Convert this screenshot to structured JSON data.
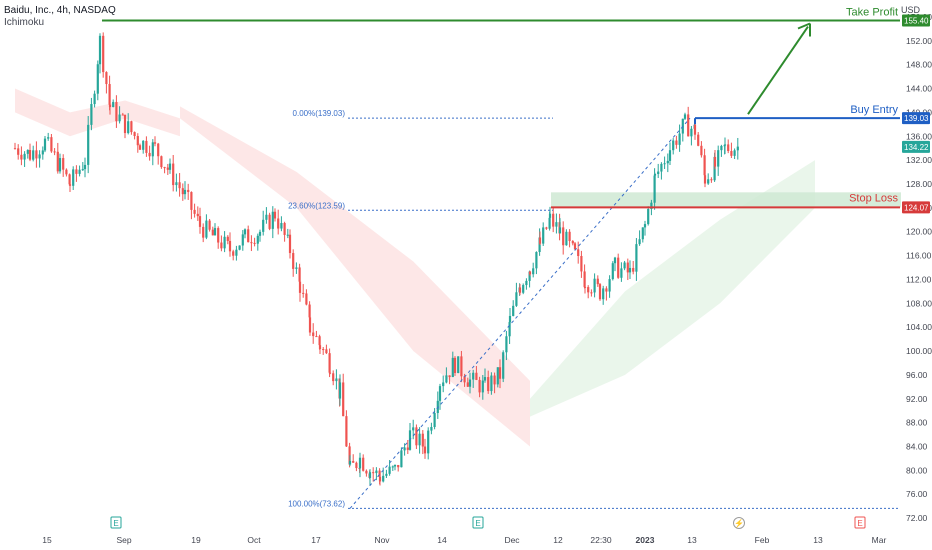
{
  "header": {
    "title": "Baidu, Inc., 4h, NASDAQ",
    "indicator": "Ichimoku",
    "currency": "USD"
  },
  "price_axis": {
    "min": 70,
    "max": 158,
    "ticks": [
      156,
      152,
      148,
      144,
      140,
      136,
      132,
      128,
      124,
      120,
      116,
      112,
      108,
      104,
      100,
      96,
      92,
      88,
      84,
      80,
      76,
      72
    ],
    "tick_format": "2dp"
  },
  "time_axis": {
    "labels": [
      "15",
      "Sep",
      "19",
      "Oct",
      "17",
      "Nov",
      "14",
      "Dec",
      "12",
      "22:30",
      "2023",
      "13",
      "Feb",
      "13",
      "Mar"
    ]
  },
  "levels": {
    "take_profit": {
      "label": "Take Profit",
      "price": 155.4,
      "price_label": "155.40",
      "color": "#2e8b2e"
    },
    "buy_entry": {
      "label": "Buy Entry",
      "price": 139.03,
      "price_label": "139.03",
      "color": "#1f5fc4"
    },
    "stop_loss": {
      "label": "Stop Loss",
      "price": 124.07,
      "price_label": "124.07",
      "color": "#d63a3a"
    },
    "last_price": {
      "price": 134.22,
      "price_label": "134.22",
      "color": "#26a69a"
    }
  },
  "fibonacci": [
    {
      "label": "0.00%(139.03)",
      "price": 139.03
    },
    {
      "label": "23.60%(123.59)",
      "price": 123.59
    },
    {
      "label": "100.00%(73.62)",
      "price": 73.62
    }
  ],
  "event_markers": [
    "E",
    "E",
    "⚡",
    "E"
  ],
  "colors": {
    "up": "#26a69a",
    "down": "#ef5350",
    "cloud_bull": "#e8f5e9",
    "cloud_bear": "#fde4e4"
  },
  "chart_data": {
    "type": "candlestick",
    "title": "Baidu, Inc., 4h, NASDAQ",
    "indicator": "Ichimoku",
    "ylim": [
      70,
      158
    ],
    "close_path": [
      [
        15,
        134
      ],
      [
        30,
        133
      ],
      [
        45,
        135
      ],
      [
        60,
        131
      ],
      [
        70,
        128
      ],
      [
        85,
        132
      ],
      [
        100,
        152
      ],
      [
        110,
        141
      ],
      [
        125,
        138
      ],
      [
        140,
        135
      ],
      [
        155,
        134
      ],
      [
        170,
        130
      ],
      [
        185,
        126
      ],
      [
        200,
        121
      ],
      [
        215,
        119
      ],
      [
        230,
        117
      ],
      [
        245,
        119
      ],
      [
        260,
        120
      ],
      [
        275,
        123
      ],
      [
        290,
        117
      ],
      [
        300,
        111
      ],
      [
        310,
        104
      ],
      [
        320,
        101
      ],
      [
        330,
        98
      ],
      [
        340,
        93
      ],
      [
        350,
        80
      ],
      [
        360,
        82
      ],
      [
        370,
        80
      ],
      [
        380,
        79
      ],
      [
        395,
        80
      ],
      [
        410,
        86
      ],
      [
        425,
        84
      ],
      [
        440,
        95
      ],
      [
        455,
        98
      ],
      [
        470,
        95
      ],
      [
        485,
        94
      ],
      [
        500,
        96
      ],
      [
        510,
        105
      ],
      [
        520,
        111
      ],
      [
        530,
        114
      ],
      [
        540,
        118
      ],
      [
        550,
        122
      ],
      [
        560,
        120
      ],
      [
        575,
        116
      ],
      [
        585,
        112
      ],
      [
        600,
        110
      ],
      [
        615,
        114
      ],
      [
        630,
        113
      ],
      [
        645,
        121
      ],
      [
        655,
        129
      ],
      [
        670,
        134
      ],
      [
        685,
        138
      ],
      [
        695,
        137
      ],
      [
        705,
        129
      ],
      [
        715,
        131
      ],
      [
        725,
        134
      ],
      [
        738,
        134.22
      ]
    ],
    "ichimoku_cloud": [
      {
        "from": 15,
        "to": 180,
        "upper": [
          144,
          140,
          142,
          139
        ],
        "lower": [
          140,
          136,
          139,
          136
        ],
        "trend": "bear"
      },
      {
        "from": 180,
        "to": 530,
        "upper": [
          141,
          130,
          115,
          95
        ],
        "lower": [
          139,
          124,
          100,
          84
        ],
        "trend": "bear"
      },
      {
        "from": 530,
        "to": 815,
        "upper": [
          92,
          110,
          122,
          132
        ],
        "lower": [
          89,
          96,
          108,
          124
        ],
        "trend": "bull"
      }
    ]
  }
}
